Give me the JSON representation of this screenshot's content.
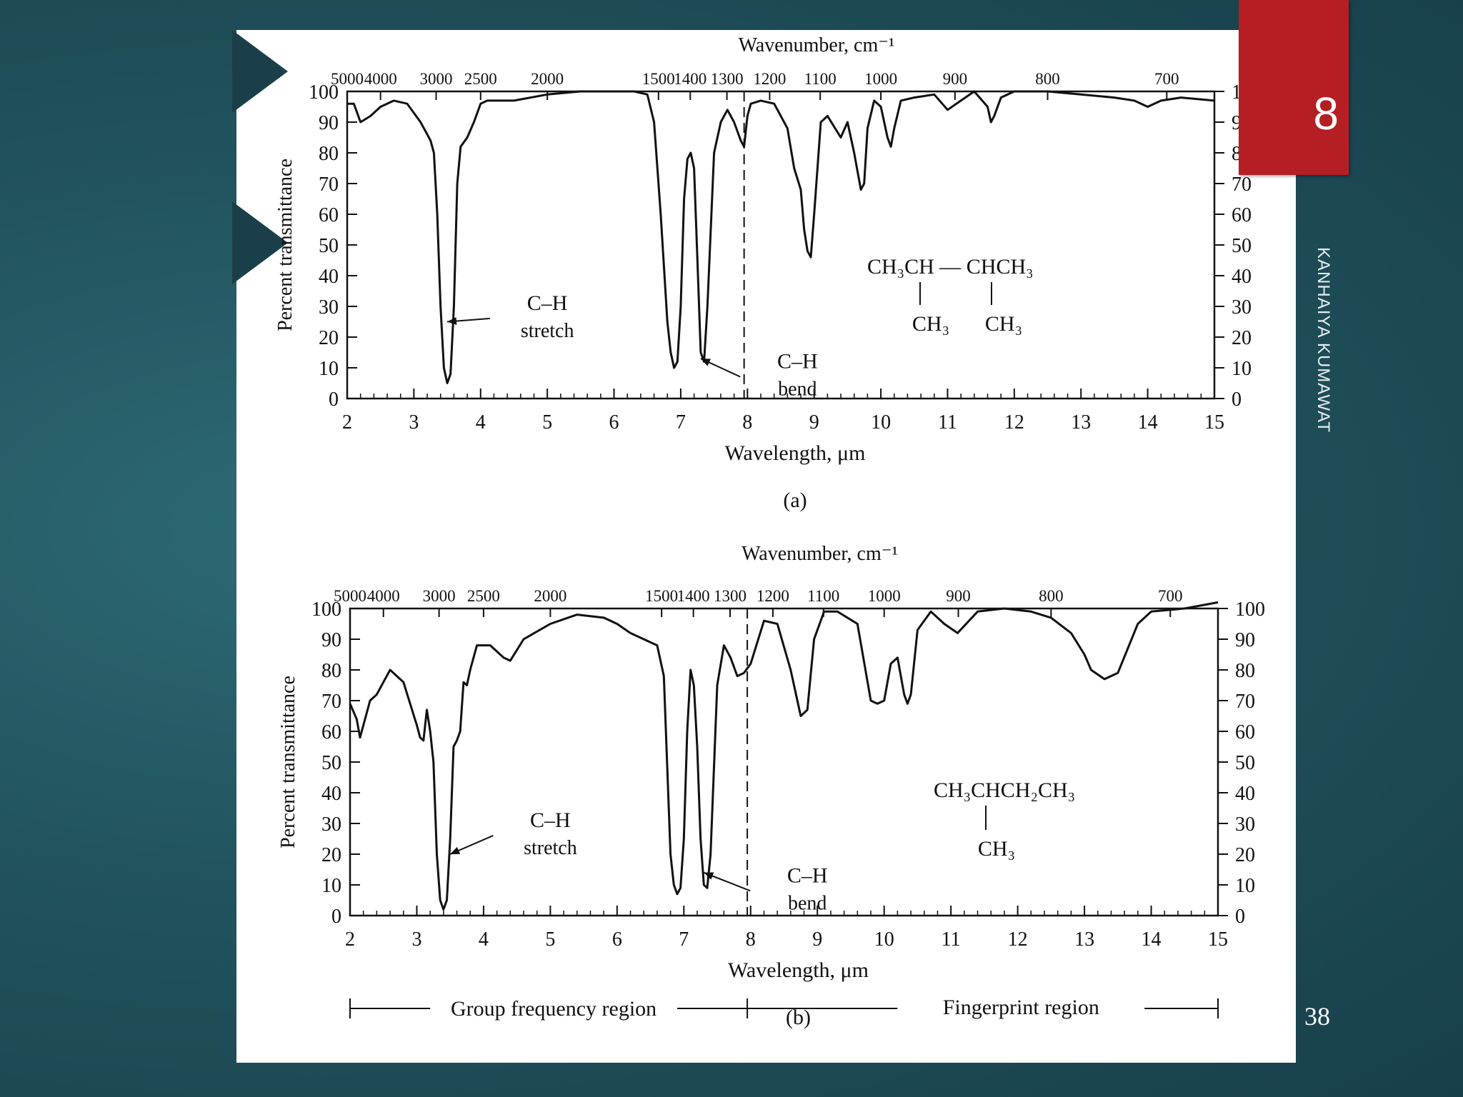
{
  "slide": {
    "slide_number": "38",
    "badge_number": "8",
    "author": "KANHAIYA KUMAWAT"
  },
  "chart_data": [
    {
      "type": "line",
      "panel_label": "(a)",
      "top_axis_label": "Wavenumber, cm⁻¹",
      "top_axis_ticks": [
        "5000",
        "4000",
        "3000",
        "2500",
        "2000",
        "1500",
        "1400",
        "1300",
        "1200",
        "1100",
        "1000",
        "900",
        "800",
        "700"
      ],
      "xlabel": "Wavelength, μm",
      "ylabel": "Percent transmittance",
      "xlim": [
        2,
        15
      ],
      "ylim": [
        0,
        100
      ],
      "x_ticks": [
        2,
        3,
        4,
        5,
        6,
        7,
        8,
        9,
        10,
        11,
        12,
        13,
        14,
        15
      ],
      "y_ticks": [
        0,
        10,
        20,
        30,
        40,
        50,
        60,
        70,
        80,
        90,
        100
      ],
      "divider_x": 7.95,
      "structure": {
        "line1": "CH₃CH — CHCH₃",
        "sub_left": "CH₃",
        "sub_right": "CH₃"
      },
      "annotations": [
        {
          "line1": "C–H",
          "line2": "stretch",
          "x": 5.0,
          "y": 27,
          "arrow_to": [
            3.5,
            25
          ]
        },
        {
          "line1": "C–H",
          "line2": "bend",
          "x": 8.75,
          "y": 8,
          "arrow_to": [
            7.3,
            13
          ]
        }
      ],
      "x": [
        2.0,
        2.1,
        2.2,
        2.35,
        2.5,
        2.7,
        2.9,
        3.1,
        3.2,
        3.25,
        3.3,
        3.35,
        3.4,
        3.45,
        3.5,
        3.55,
        3.6,
        3.65,
        3.7,
        3.8,
        3.9,
        4.0,
        4.1,
        4.5,
        5.0,
        5.5,
        6.0,
        6.3,
        6.5,
        6.6,
        6.7,
        6.8,
        6.85,
        6.9,
        6.95,
        7.0,
        7.05,
        7.1,
        7.15,
        7.2,
        7.25,
        7.3,
        7.35,
        7.4,
        7.5,
        7.6,
        7.7,
        7.8,
        7.9,
        7.95,
        8.0,
        8.05,
        8.2,
        8.4,
        8.6,
        8.7,
        8.8,
        8.85,
        8.9,
        8.95,
        9.0,
        9.1,
        9.2,
        9.4,
        9.5,
        9.6,
        9.7,
        9.75,
        9.8,
        9.9,
        10.0,
        10.1,
        10.15,
        10.2,
        10.3,
        10.5,
        10.8,
        11.0,
        11.2,
        11.4,
        11.6,
        11.65,
        11.7,
        11.8,
        12.0,
        12.5,
        13.0,
        13.5,
        13.8,
        14.0,
        14.2,
        14.5,
        15.0
      ],
      "y": [
        96,
        96,
        90,
        92,
        95,
        97,
        96,
        90,
        86,
        84,
        80,
        60,
        30,
        10,
        5,
        8,
        30,
        70,
        82,
        85,
        90,
        96,
        97,
        97,
        99,
        100,
        100,
        100,
        99,
        90,
        60,
        25,
        15,
        10,
        12,
        30,
        65,
        78,
        80,
        75,
        45,
        15,
        12,
        30,
        80,
        90,
        94,
        90,
        84,
        82,
        92,
        96,
        97,
        96,
        88,
        75,
        68,
        55,
        48,
        46,
        60,
        90,
        92,
        85,
        90,
        80,
        68,
        70,
        88,
        97,
        95,
        85,
        82,
        88,
        97,
        98,
        99,
        94,
        97,
        100,
        95,
        90,
        92,
        98,
        100,
        100,
        99,
        98,
        97,
        95,
        97,
        98,
        97
      ]
    },
    {
      "type": "line",
      "panel_label": "(b)",
      "top_axis_label": "Wavenumber, cm⁻¹",
      "top_axis_ticks": [
        "5000",
        "4000",
        "3000",
        "2500",
        "2000",
        "1500",
        "1400",
        "1300",
        "1200",
        "1100",
        "1000",
        "900",
        "800",
        "700"
      ],
      "xlabel": "Wavelength, μm",
      "ylabel": "Percent transmittance",
      "xlim": [
        2,
        15
      ],
      "ylim": [
        0,
        100
      ],
      "x_ticks": [
        2,
        3,
        4,
        5,
        6,
        7,
        8,
        9,
        10,
        11,
        12,
        13,
        14,
        15
      ],
      "y_ticks": [
        0,
        10,
        20,
        30,
        40,
        50,
        60,
        70,
        80,
        90,
        100
      ],
      "divider_x": 7.95,
      "structure": {
        "line1": "CH₃CHCH₂CH₃",
        "sub_left": "CH₃"
      },
      "annotations": [
        {
          "line1": "C–H",
          "line2": "stretch",
          "x": 5.0,
          "y": 27,
          "arrow_to": [
            3.5,
            20
          ]
        },
        {
          "line1": "C–H",
          "line2": "bend",
          "x": 8.85,
          "y": 9,
          "arrow_to": [
            7.3,
            14
          ]
        }
      ],
      "regions": {
        "left": "Group frequency region",
        "right": "Fingerprint region"
      },
      "x": [
        2.0,
        2.1,
        2.15,
        2.2,
        2.3,
        2.4,
        2.5,
        2.6,
        2.8,
        3.0,
        3.05,
        3.1,
        3.15,
        3.2,
        3.25,
        3.3,
        3.35,
        3.4,
        3.45,
        3.5,
        3.55,
        3.6,
        3.65,
        3.7,
        3.75,
        3.8,
        3.9,
        4.1,
        4.3,
        4.4,
        4.6,
        5.0,
        5.4,
        5.8,
        6.0,
        6.2,
        6.4,
        6.6,
        6.7,
        6.8,
        6.85,
        6.9,
        6.95,
        7.0,
        7.05,
        7.1,
        7.15,
        7.2,
        7.25,
        7.3,
        7.35,
        7.4,
        7.5,
        7.6,
        7.7,
        7.8,
        7.9,
        8.0,
        8.2,
        8.4,
        8.6,
        8.75,
        8.85,
        8.95,
        9.1,
        9.3,
        9.6,
        9.8,
        9.9,
        10.0,
        10.1,
        10.2,
        10.3,
        10.35,
        10.4,
        10.5,
        10.7,
        10.9,
        11.1,
        11.4,
        11.8,
        12.2,
        12.5,
        12.8,
        13.0,
        13.1,
        13.3,
        13.5,
        13.8,
        14.0,
        14.5,
        15.0
      ],
      "y": [
        69,
        64,
        58,
        62,
        70,
        72,
        76,
        80,
        76,
        62,
        58,
        57,
        67,
        60,
        50,
        20,
        5,
        2,
        5,
        25,
        55,
        57,
        60,
        76,
        75,
        80,
        88,
        88,
        84,
        83,
        90,
        95,
        98,
        97,
        95,
        92,
        90,
        88,
        78,
        20,
        10,
        7,
        9,
        25,
        60,
        80,
        75,
        55,
        25,
        10,
        9,
        20,
        75,
        88,
        84,
        78,
        79,
        82,
        96,
        95,
        80,
        65,
        67,
        90,
        99,
        99,
        95,
        70,
        69,
        70,
        82,
        84,
        72,
        69,
        72,
        93,
        99,
        95,
        92,
        99,
        100,
        99,
        97,
        92,
        85,
        80,
        77,
        79,
        95,
        99,
        100,
        102
      ]
    }
  ]
}
